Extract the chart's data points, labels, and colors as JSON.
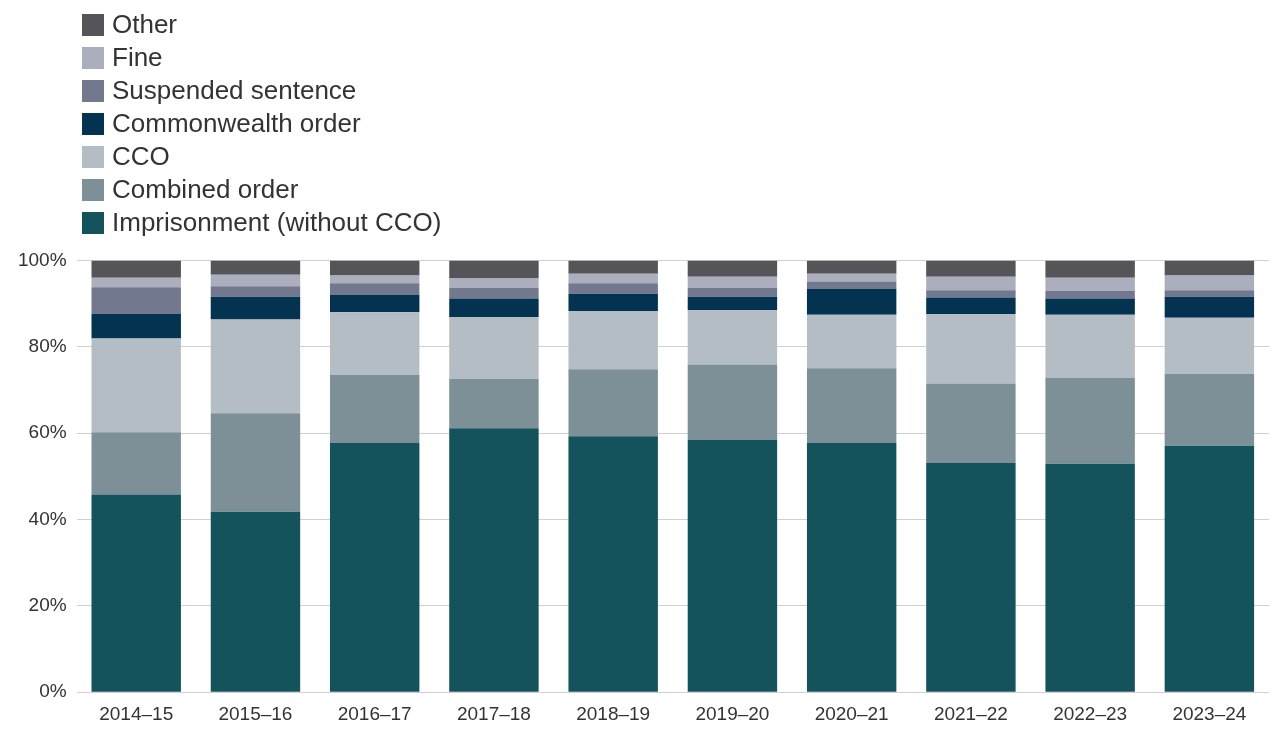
{
  "chart_data": {
    "type": "bar",
    "stacked": true,
    "legend": "top left",
    "grid": "y",
    "categories": [
      "2014–15",
      "2015–16",
      "2016–17",
      "2017–18",
      "2018–19",
      "2019–20",
      "2020–21",
      "2021–22",
      "2022–23",
      "2023–24"
    ],
    "ylim": [
      0,
      100
    ],
    "yticks": [
      {
        "value": 0,
        "label": "0%"
      },
      {
        "value": 20,
        "label": "20%"
      },
      {
        "value": 40,
        "label": "40%"
      },
      {
        "value": 60,
        "label": "60%"
      },
      {
        "value": 80,
        "label": "80%"
      },
      {
        "value": 100,
        "label": "100%"
      }
    ],
    "series": [
      {
        "name": "Imprisonment (without CCO)",
        "color": "#14535c",
        "values": [
          45.8,
          41.8,
          57.7,
          61.1,
          59.3,
          58.4,
          57.7,
          53.1,
          52.9,
          57.1
        ]
      },
      {
        "name": "Combined order",
        "color": "#7d9097",
        "values": [
          14.4,
          22.8,
          15.8,
          11.5,
          15.5,
          17.5,
          17.3,
          18.4,
          19.9,
          16.6
        ]
      },
      {
        "name": "CCO",
        "color": "#b5bdc4",
        "values": [
          21.7,
          21.7,
          14.5,
          14.3,
          13.5,
          12.6,
          12.4,
          16.1,
          14.6,
          13.0
        ]
      },
      {
        "name": "Commonwealth order",
        "color": "#043251",
        "values": [
          5.7,
          5.3,
          4.0,
          4.3,
          4.0,
          3.1,
          6.0,
          3.8,
          3.8,
          4.9
        ]
      },
      {
        "name": "Suspended sentence",
        "color": "#72798e",
        "values": [
          6.2,
          2.4,
          2.7,
          2.4,
          2.4,
          2.0,
          1.7,
          1.7,
          1.7,
          1.5
        ]
      },
      {
        "name": "Fine",
        "color": "#abaebd",
        "values": [
          2.2,
          2.7,
          1.8,
          2.2,
          2.2,
          2.6,
          1.8,
          3.1,
          3.1,
          3.4
        ]
      },
      {
        "name": "Other",
        "color": "#545459",
        "values": [
          4.0,
          3.3,
          3.5,
          4.2,
          3.1,
          3.8,
          3.1,
          3.8,
          4.0,
          3.5
        ]
      }
    ]
  }
}
